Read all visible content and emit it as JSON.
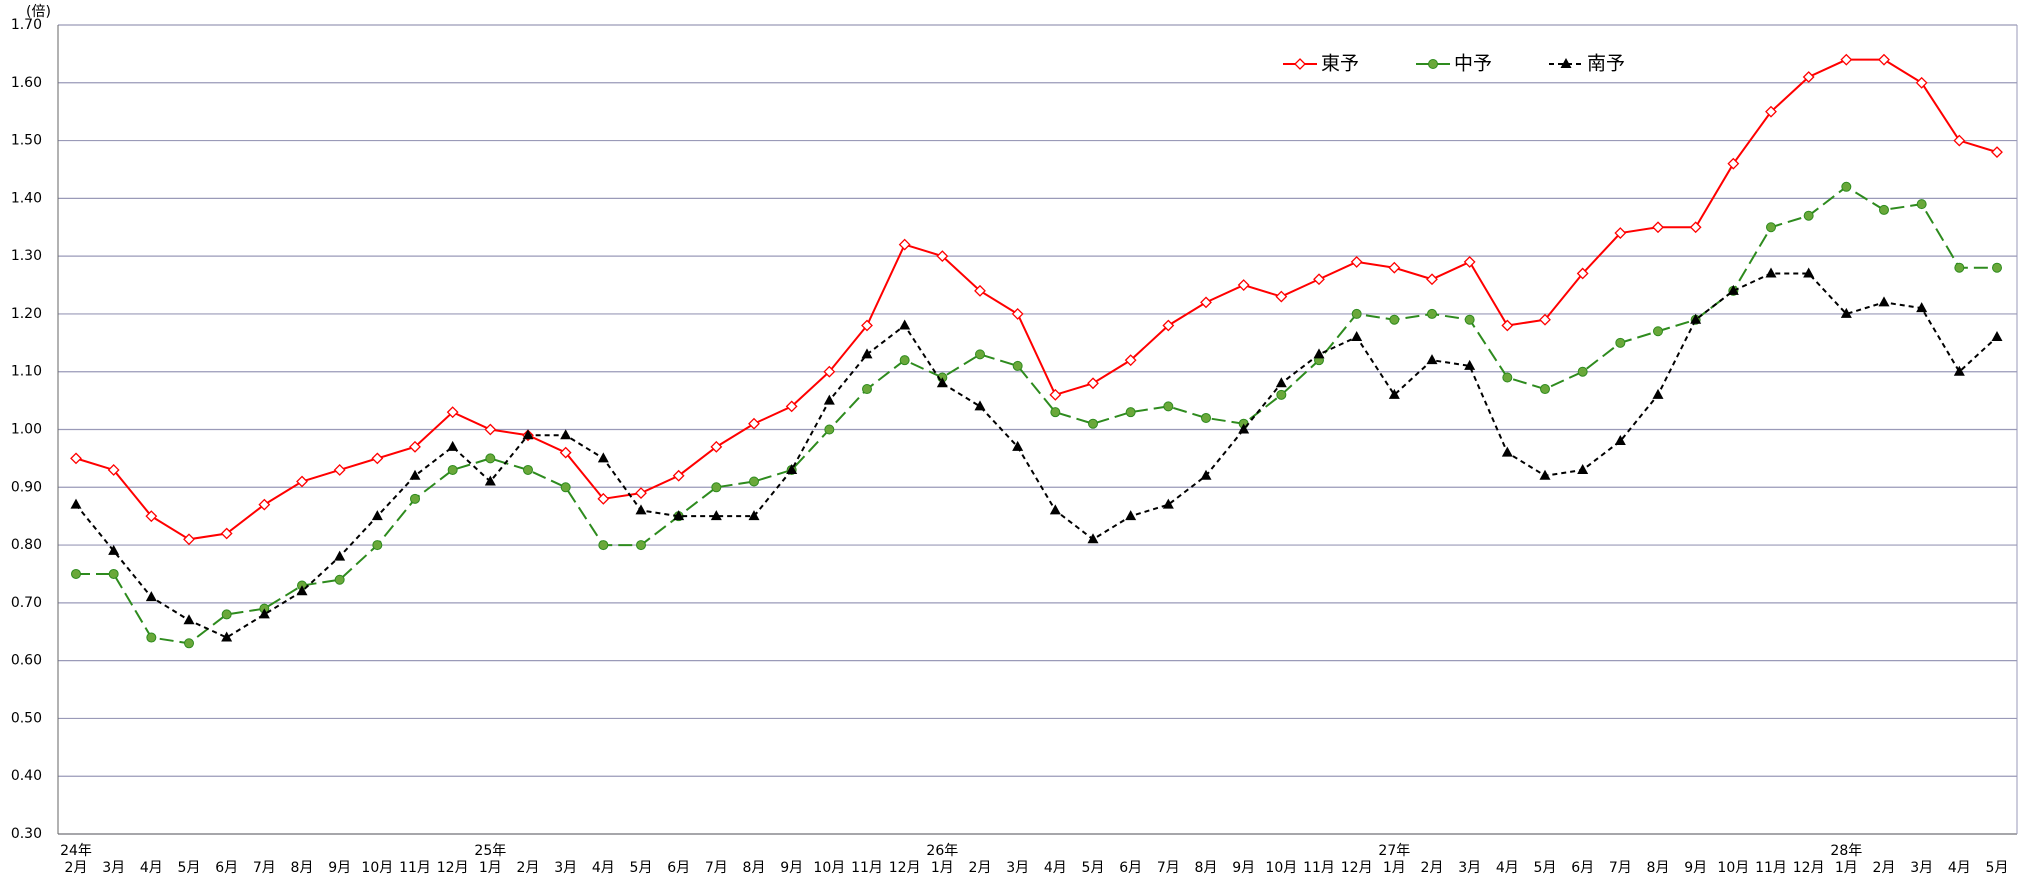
{
  "chart_data": {
    "type": "line",
    "y_unit_label": "(倍)",
    "categories": [
      "2月",
      "3月",
      "4月",
      "5月",
      "6月",
      "7月",
      "8月",
      "9月",
      "10月",
      "11月",
      "12月",
      "1月",
      "2月",
      "3月",
      "4月",
      "5月",
      "6月",
      "7月",
      "8月",
      "9月",
      "10月",
      "11月",
      "12月",
      "1月",
      "2月",
      "3月",
      "4月",
      "5月",
      "6月",
      "7月",
      "8月",
      "9月",
      "10月",
      "11月",
      "12月",
      "1月",
      "2月",
      "3月",
      "4月",
      "5月",
      "6月",
      "7月",
      "8月",
      "9月",
      "10月",
      "11月",
      "12月",
      "1月",
      "2月",
      "3月",
      "4月",
      "5月"
    ],
    "years": [
      "24年",
      null,
      null,
      null,
      null,
      null,
      null,
      null,
      null,
      null,
      null,
      "25年",
      null,
      null,
      null,
      null,
      null,
      null,
      null,
      null,
      null,
      null,
      null,
      "26年",
      null,
      null,
      null,
      null,
      null,
      null,
      null,
      null,
      null,
      null,
      null,
      "27年",
      null,
      null,
      null,
      null,
      null,
      null,
      null,
      null,
      null,
      null,
      null,
      "28年",
      null,
      null,
      null,
      null
    ],
    "series": [
      {
        "name": "東予",
        "color": "#ff0000",
        "line_style": "solid",
        "marker": "diamond",
        "values": [
          0.95,
          0.93,
          0.85,
          0.81,
          0.82,
          0.87,
          0.91,
          0.93,
          0.95,
          0.97,
          1.03,
          1.0,
          0.99,
          0.96,
          0.88,
          0.89,
          0.92,
          0.97,
          1.01,
          1.04,
          1.1,
          1.18,
          1.32,
          1.3,
          1.24,
          1.2,
          1.06,
          1.08,
          1.12,
          1.18,
          1.22,
          1.25,
          1.23,
          1.26,
          1.29,
          1.28,
          1.26,
          1.29,
          1.18,
          1.19,
          1.27,
          1.34,
          1.35,
          1.35,
          1.46,
          1.55,
          1.61,
          1.64,
          1.64,
          1.6,
          1.5,
          1.48
        ]
      },
      {
        "name": "中予",
        "color": "#2e8b1e",
        "line_style": "dashed",
        "marker": "circle",
        "values": [
          0.75,
          0.75,
          0.64,
          0.63,
          0.68,
          0.69,
          0.73,
          0.74,
          0.8,
          0.88,
          0.93,
          0.95,
          0.93,
          0.9,
          0.8,
          0.8,
          0.85,
          0.9,
          0.91,
          0.93,
          1.0,
          1.07,
          1.12,
          1.09,
          1.13,
          1.11,
          1.03,
          1.01,
          1.03,
          1.04,
          1.02,
          1.01,
          1.06,
          1.12,
          1.2,
          1.19,
          1.2,
          1.19,
          1.09,
          1.07,
          1.1,
          1.15,
          1.17,
          1.19,
          1.24,
          1.35,
          1.37,
          1.42,
          1.38,
          1.39,
          1.28,
          1.28
        ]
      },
      {
        "name": "南予",
        "color": "#000000",
        "line_style": "dotted",
        "marker": "triangle",
        "values": [
          0.87,
          0.79,
          0.71,
          0.67,
          0.64,
          0.68,
          0.72,
          0.78,
          0.85,
          0.92,
          0.97,
          0.91,
          0.99,
          0.99,
          0.95,
          0.86,
          0.85,
          0.85,
          0.85,
          0.93,
          1.05,
          1.13,
          1.18,
          1.08,
          1.04,
          0.97,
          0.86,
          0.81,
          0.85,
          0.87,
          0.92,
          1.0,
          1.08,
          1.13,
          1.16,
          1.06,
          1.12,
          1.11,
          0.96,
          0.92,
          0.93,
          0.98,
          1.06,
          1.19,
          1.24,
          1.27,
          1.27,
          1.2,
          1.22,
          1.21,
          1.1,
          1.16
        ]
      }
    ],
    "ylim": [
      0.3,
      1.7
    ],
    "yticks": [
      {
        "value": 0.3,
        "label": "0.30"
      },
      {
        "value": 0.4,
        "label": "0.40"
      },
      {
        "value": 0.5,
        "label": "0.50"
      },
      {
        "value": 0.6,
        "label": "0.60"
      },
      {
        "value": 0.7,
        "label": "0.70"
      },
      {
        "value": 0.8,
        "label": "0.80"
      },
      {
        "value": 0.9,
        "label": "0.90"
      },
      {
        "value": 1.0,
        "label": "1.00"
      },
      {
        "value": 1.1,
        "label": "1.10"
      },
      {
        "value": 1.2,
        "label": "1.20"
      },
      {
        "value": 1.3,
        "label": "1.30"
      },
      {
        "value": 1.4,
        "label": "1.40"
      },
      {
        "value": 1.5,
        "label": "1.50"
      },
      {
        "value": 1.6,
        "label": "1.60"
      },
      {
        "value": 1.7,
        "label": "1.70"
      }
    ],
    "grid": true,
    "legend": "top"
  }
}
